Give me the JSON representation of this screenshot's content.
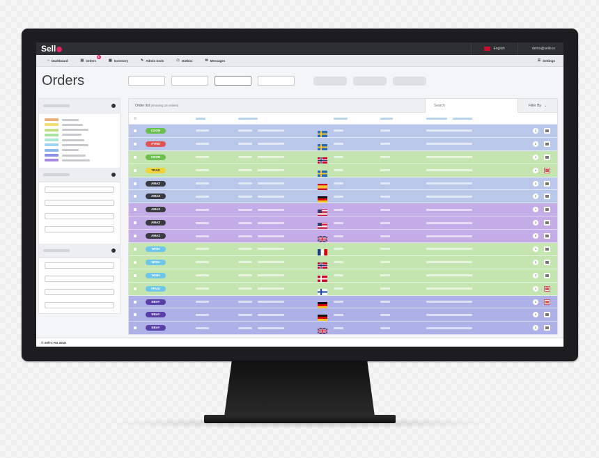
{
  "app": {
    "logo_text": "Sell"
  },
  "topbar": {
    "language": "English",
    "user_email": "demo@sello.io"
  },
  "nav": {
    "items": [
      {
        "label": "Dashboard",
        "icon": "home-icon",
        "glyph": "⌂"
      },
      {
        "label": "Orders",
        "icon": "orders-icon",
        "glyph": "▤",
        "badge": "8"
      },
      {
        "label": "Inventory",
        "icon": "inventory-icon",
        "glyph": "▦"
      },
      {
        "label": "Admin tools",
        "icon": "wrench-icon",
        "glyph": "✎"
      },
      {
        "label": "Outbox",
        "icon": "outbox-icon",
        "glyph": "☖"
      },
      {
        "label": "Messages",
        "icon": "messages-icon",
        "glyph": "✉"
      }
    ],
    "settings_label": "Settings"
  },
  "page": {
    "title": "Orders"
  },
  "panel": {
    "title": "Order list",
    "subtitle": "(showing 16 orders)",
    "search_placeholder": "Search",
    "filter_label": "Filter By"
  },
  "legend_colors": [
    "#e8b07a",
    "#f2dd74",
    "#c2e08a",
    "#a8e4a0",
    "#a9e6d6",
    "#9fd3f0",
    "#8fb8ec",
    "#8e8ee6",
    "#a58ae0"
  ],
  "rows": [
    {
      "tag": "CDON",
      "tag_color": "#6bbf4e",
      "row_color": "#b9c8ea",
      "flag": "se",
      "count": "2"
    },
    {
      "tag": "FYND",
      "tag_color": "#e05555",
      "row_color": "#b9c8ea",
      "flag": "se",
      "count": "2"
    },
    {
      "tag": "CDON",
      "tag_color": "#6bbf4e",
      "row_color": "#c4e4b0",
      "flag": "no",
      "count": "1"
    },
    {
      "tag": "TRAD",
      "tag_color": "#f0d23a",
      "row_color": "#c4e4b0",
      "flag": "se",
      "count": "4",
      "action_red": true
    },
    {
      "tag": "AMAZ",
      "tag_color": "#3a3b40",
      "row_color": "#b9c8ea",
      "flag": "es",
      "count": "3"
    },
    {
      "tag": "AMAZ",
      "tag_color": "#3a3b40",
      "row_color": "#b9c8ea",
      "flag": "de",
      "count": "2"
    },
    {
      "tag": "AMAZ",
      "tag_color": "#3a3b40",
      "row_color": "#c3ace8",
      "flag": "us",
      "count": "1"
    },
    {
      "tag": "AMAZ",
      "tag_color": "#3a3b40",
      "row_color": "#c3ace8",
      "flag": "us",
      "count": "3"
    },
    {
      "tag": "AMAZ",
      "tag_color": "#3a3b40",
      "row_color": "#c3ace8",
      "flag": "uk",
      "count": "5"
    },
    {
      "tag": "WISH",
      "tag_color": "#6ec6ea",
      "row_color": "#c4e4b0",
      "flag": "fr",
      "count": "1"
    },
    {
      "tag": "WISH",
      "tag_color": "#6ec6ea",
      "row_color": "#c4e4b0",
      "flag": "no",
      "count": "3"
    },
    {
      "tag": "WISH",
      "tag_color": "#6ec6ea",
      "row_color": "#c4e4b0",
      "flag": "dk",
      "count": "2"
    },
    {
      "tag": "FRUU",
      "tag_color": "#6ec6ea",
      "row_color": "#c4e4b0",
      "flag": "fi",
      "count": "1",
      "action_red": true
    },
    {
      "tag": "EBAY",
      "tag_color": "#5a3fa8",
      "row_color": "#adb1e8",
      "flag": "de",
      "count": "2",
      "action_red": true
    },
    {
      "tag": "EBAY",
      "tag_color": "#5a3fa8",
      "row_color": "#adb1e8",
      "flag": "de",
      "count": "3"
    },
    {
      "tag": "EBAY",
      "tag_color": "#5a3fa8",
      "row_color": "#adb1e8",
      "flag": "uk",
      "count": "3"
    }
  ],
  "footer": {
    "copyright": "© Sell-c-AS 2018"
  }
}
